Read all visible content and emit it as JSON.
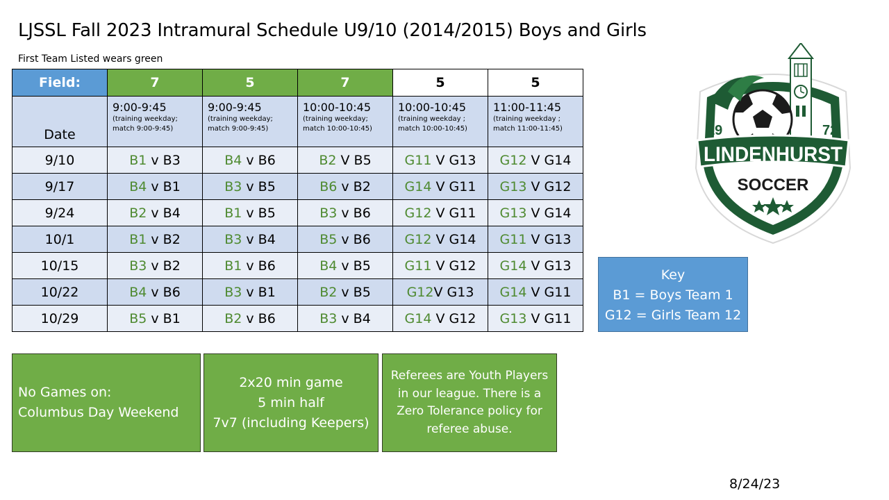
{
  "title": "LJSSL Fall 2023 Intramural Schedule U9/10 (2014/2015) Boys and Girls",
  "subtitle": "First Team Listed wears green",
  "table": {
    "field_label": "Field:",
    "date_label": "Date",
    "columns": [
      {
        "field": "7",
        "time": "9:00-9:45",
        "note1": "(training weekday;",
        "note2": "match 9:00-9:45)"
      },
      {
        "field": "5",
        "time": "9:00-9:45",
        "note1": "(training weekday;",
        "note2": "match 9:00-9:45)"
      },
      {
        "field": "7",
        "time": "10:00-10:45",
        "note1": "(training weekday;",
        "note2": "match 10:00-10:45)"
      },
      {
        "field": "5",
        "time": "10:00-10:45",
        "note1": "(training weekday ;",
        "note2": "match 10:00-10:45)"
      },
      {
        "field": "5",
        "time": "11:00-11:45",
        "note1": "(training weekday ;",
        "note2": "match 11:00-11:45)"
      }
    ],
    "rows": [
      {
        "date": "9/10",
        "games": [
          {
            "home": "B1",
            "sep": " v ",
            "away": "B3"
          },
          {
            "home": "B4",
            "sep": " v ",
            "away": "B6"
          },
          {
            "home": "B2",
            "sep": " V ",
            "away": "B5"
          },
          {
            "home": "G11",
            "sep": " V ",
            "away": "G13"
          },
          {
            "home": "G12",
            "sep": " V ",
            "away": "G14"
          }
        ]
      },
      {
        "date": "9/17",
        "games": [
          {
            "home": "B4",
            "sep": " v ",
            "away": "B1"
          },
          {
            "home": "B3",
            "sep": " v ",
            "away": "B5"
          },
          {
            "home": "B6",
            "sep": " v ",
            "away": "B2"
          },
          {
            "home": "G14",
            "sep": " V ",
            "away": "G11"
          },
          {
            "home": "G13",
            "sep": " V ",
            "away": "G12"
          }
        ]
      },
      {
        "date": "9/24",
        "games": [
          {
            "home": "B2",
            "sep": " v ",
            "away": "B4"
          },
          {
            "home": "B1",
            "sep": " v ",
            "away": "B5"
          },
          {
            "home": "B3",
            "sep": " v ",
            "away": "B6"
          },
          {
            "home": "G12",
            "sep": " V ",
            "away": "G11"
          },
          {
            "home": "G13",
            "sep": " V ",
            "away": "G14"
          }
        ]
      },
      {
        "date": "10/1",
        "games": [
          {
            "home": "B1",
            "sep": " v ",
            "away": "B2"
          },
          {
            "home": "B3",
            "sep": " v ",
            "away": "B4"
          },
          {
            "home": "B5",
            "sep": " v ",
            "away": "B6"
          },
          {
            "home": "G12",
            "sep": " V ",
            "away": "G14"
          },
          {
            "home": "G11",
            "sep": " V ",
            "away": "G13"
          }
        ]
      },
      {
        "date": "10/15",
        "games": [
          {
            "home": "B3",
            "sep": " v ",
            "away": "B2"
          },
          {
            "home": "B1",
            "sep": " v ",
            "away": "B6"
          },
          {
            "home": "B4",
            "sep": " v ",
            "away": "B5"
          },
          {
            "home": "G11",
            "sep": " V ",
            "away": "G12"
          },
          {
            "home": "G14",
            "sep": " V ",
            "away": "G13"
          }
        ]
      },
      {
        "date": "10/22",
        "games": [
          {
            "home": "B4",
            "sep": " v ",
            "away": "B6"
          },
          {
            "home": "B3",
            "sep": " v ",
            "away": "B1"
          },
          {
            "home": "B2",
            "sep": " v ",
            "away": "B5"
          },
          {
            "home": "G12",
            "sep": "V ",
            "away": "G13"
          },
          {
            "home": "G14",
            "sep": " V ",
            "away": "G11"
          }
        ]
      },
      {
        "date": "10/29",
        "games": [
          {
            "home": "B5",
            "sep": " v ",
            "away": "B1"
          },
          {
            "home": "B2",
            "sep": " v ",
            "away": "B6"
          },
          {
            "home": "B3",
            "sep": " v ",
            "away": "B4"
          },
          {
            "home": "G14",
            "sep": " V ",
            "away": "G12"
          },
          {
            "home": "G13",
            "sep": " V ",
            "away": "G11"
          }
        ]
      }
    ]
  },
  "key": {
    "title": "Key",
    "line1": "B1 = Boys Team 1",
    "line2": "G12 = Girls Team 12"
  },
  "notes": {
    "no_games": {
      "line1": "No Games on:",
      "line2": "Columbus Day Weekend"
    },
    "format": {
      "line1": "2x20 min game",
      "line2": "5 min half",
      "line3": "7v7 (including Keepers)"
    },
    "referees": {
      "line1": "Referees are Youth Players",
      "line2": "in our league. There is a",
      "line3": "Zero Tolerance policy for",
      "line4": "referee abuse."
    }
  },
  "logo": {
    "name": "LINDENHURST",
    "sub": "SOCCER",
    "year_left": "19",
    "year_right": "72"
  },
  "date_stamp": "8/24/23",
  "colors": {
    "header_blue": "#5b9bd5",
    "header_green": "#70ad47",
    "team_green_text": "#4e8a30",
    "row_light": "#e9eef7",
    "row_dark": "#cfdbef",
    "logo_green": "#1e5b34"
  }
}
